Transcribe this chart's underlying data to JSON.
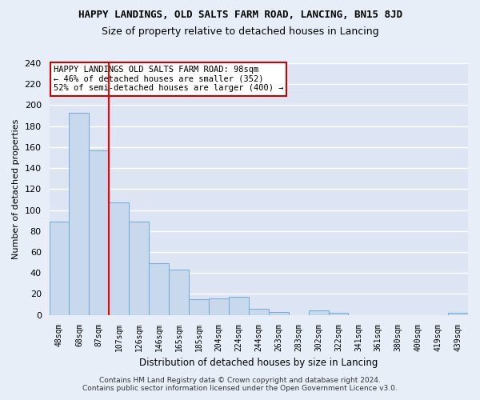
{
  "title": "HAPPY LANDINGS, OLD SALTS FARM ROAD, LANCING, BN15 8JD",
  "subtitle": "Size of property relative to detached houses in Lancing",
  "xlabel": "Distribution of detached houses by size in Lancing",
  "ylabel": "Number of detached properties",
  "bar_labels": [
    "48sqm",
    "68sqm",
    "87sqm",
    "107sqm",
    "126sqm",
    "146sqm",
    "165sqm",
    "185sqm",
    "204sqm",
    "224sqm",
    "244sqm",
    "263sqm",
    "283sqm",
    "302sqm",
    "322sqm",
    "341sqm",
    "361sqm",
    "380sqm",
    "400sqm",
    "419sqm",
    "439sqm"
  ],
  "bar_values": [
    89,
    193,
    157,
    107,
    89,
    49,
    43,
    15,
    16,
    17,
    6,
    3,
    0,
    4,
    2,
    0,
    0,
    0,
    0,
    0,
    2
  ],
  "bar_color": "#c9d9ed",
  "bar_edge_color": "#7bafd4",
  "red_line_x": 2.5,
  "ylim": [
    0,
    240
  ],
  "yticks": [
    0,
    20,
    40,
    60,
    80,
    100,
    120,
    140,
    160,
    180,
    200,
    220,
    240
  ],
  "annotation_text": "HAPPY LANDINGS OLD SALTS FARM ROAD: 98sqm\n← 46% of detached houses are smaller (352)\n52% of semi-detached houses are larger (400) →",
  "footnote": "Contains HM Land Registry data © Crown copyright and database right 2024.\nContains public sector information licensed under the Open Government Licence v3.0.",
  "bg_color": "#e8eef8",
  "plot_bg_color": "#dde5f5",
  "grid_color": "#ffffff",
  "annotation_box_edge": "#cc0000",
  "title_fontsize": 9,
  "subtitle_fontsize": 9
}
